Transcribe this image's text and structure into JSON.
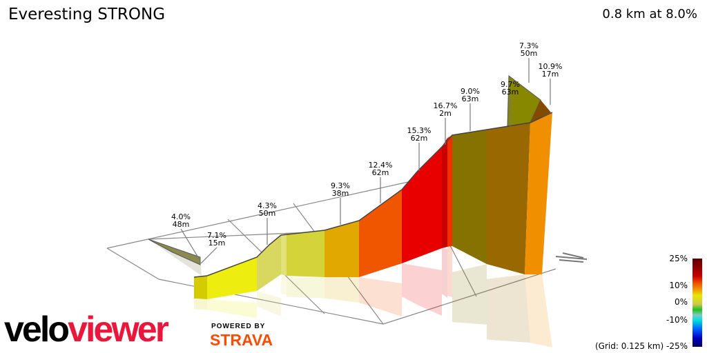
{
  "header": {
    "title": "Everesting STRONG",
    "summary": "0.8 km at 8.0%"
  },
  "chart_data": {
    "type": "3d-elevation-profile",
    "title": "Everesting STRONG",
    "distance_km": 0.8,
    "average_grade_pct": 8.0,
    "segments": [
      {
        "grade": "4.0%",
        "length": "48m"
      },
      {
        "grade": "7.1%",
        "length": "15m"
      },
      {
        "grade": "4.3%",
        "length": "50m"
      },
      {
        "grade": "9.3%",
        "length": "38m"
      },
      {
        "grade": "12.4%",
        "length": "62m"
      },
      {
        "grade": "15.3%",
        "length": "62m"
      },
      {
        "grade": "16.7%",
        "length": "2m"
      },
      {
        "grade": "9.0%",
        "length": "63m"
      },
      {
        "grade": "9.7%",
        "length": "63m"
      },
      {
        "grade": "7.3%",
        "length": "50m"
      },
      {
        "grade": "10.9%",
        "length": "17m"
      }
    ],
    "legend": {
      "ticks": [
        "25%",
        "10%",
        "0%",
        "-10%",
        "-25%"
      ],
      "grid_note": "(Grid: 0.125 km)",
      "colors": [
        "#5a0000",
        "#c80000",
        "#f05000",
        "#f0a000",
        "#e8e800",
        "#c8c850",
        "#20c020",
        "#80c8c8",
        "#00e0e0",
        "#0060ff",
        "#0000c0",
        "#000060"
      ]
    }
  },
  "branding": {
    "logo_part1": "velo",
    "logo_part2": "viewer",
    "powered_by": "POWERED BY",
    "strava": "STRAVA"
  }
}
